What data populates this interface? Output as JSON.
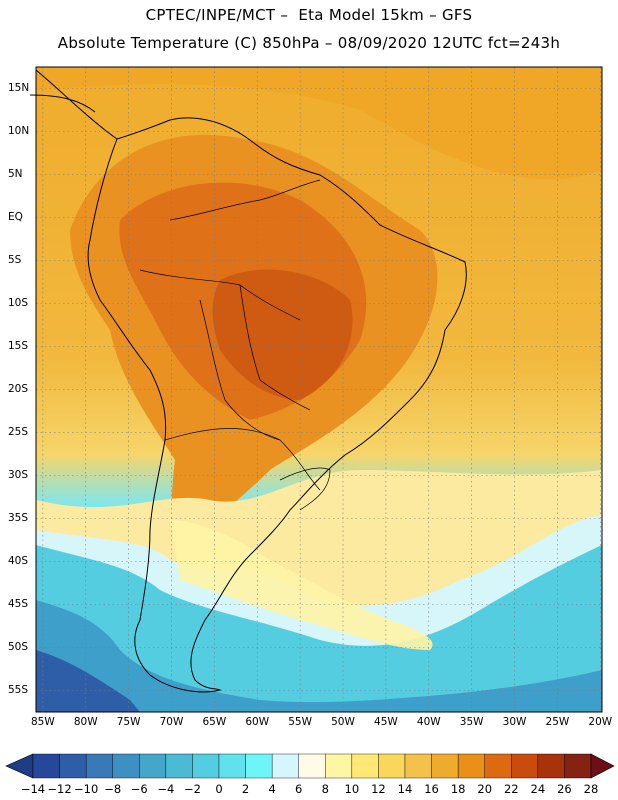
{
  "header": {
    "line1": "CPTEC/INPE/MCT –  Eta Model 15km – GFS",
    "line2": "Absolute Temperature (C) 850hPa – 08/09/2020 12UTC fct=243h"
  },
  "map": {
    "region": "South America",
    "variable": "Absolute Temperature (C) 850hPa",
    "lat_labels": [
      "15N",
      "10N",
      "5N",
      "EQ",
      "5S",
      "10S",
      "15S",
      "20S",
      "25S",
      "30S",
      "35S",
      "40S",
      "45S",
      "50S",
      "55S"
    ],
    "lon_labels": [
      "85W",
      "80W",
      "75W",
      "70W",
      "65W",
      "60W",
      "55W",
      "50W",
      "45W",
      "40W",
      "35W",
      "30W",
      "25W",
      "20W"
    ]
  },
  "colorbar": {
    "labels": [
      "-14",
      "-12",
      "-10",
      "-8",
      "-6",
      "-4",
      "-2",
      "0",
      "2",
      "4",
      "6",
      "8",
      "10",
      "12",
      "14",
      "16",
      "18",
      "20",
      "22",
      "24",
      "26",
      "28"
    ],
    "under_color": "#1d3e86",
    "over_color": "#6b0f19",
    "colors": [
      "#27489a",
      "#2f5ea9",
      "#3a79b8",
      "#3f90c2",
      "#44a6c9",
      "#4bbad4",
      "#53cde0",
      "#5fe2ec",
      "#6ef5f8",
      "#d4f7fc",
      "#fffbe7",
      "#fff6a3",
      "#ffe873",
      "#f9d75b",
      "#f4c14a",
      "#efab2b",
      "#e98f1a",
      "#de6a10",
      "#c94c0d",
      "#a8330b",
      "#862211"
    ]
  }
}
